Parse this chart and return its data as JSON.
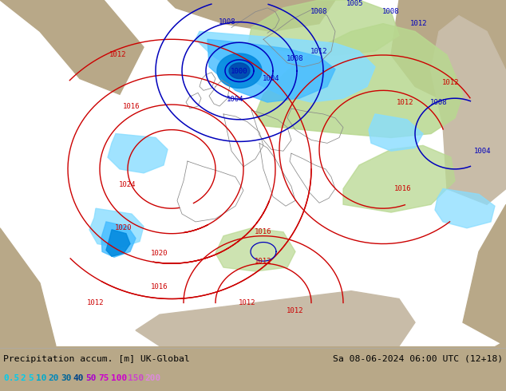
{
  "title_left": "Precipitation accum. [m] UK-Global",
  "title_right": "Sa 08-06-2024 06:00 UTC (12+18)",
  "legend_values": [
    "0.5",
    "2",
    "5",
    "10",
    "20",
    "30",
    "40",
    "50",
    "75",
    "100",
    "150",
    "200"
  ],
  "legend_colors_text": [
    "#00ccee",
    "#00ccee",
    "#00ccee",
    "#00aacc",
    "#0088bb",
    "#006699",
    "#004488",
    "#aa00cc",
    "#cc00cc",
    "#cc00cc",
    "#cc44cc",
    "#dd88dd"
  ],
  "bg_color": "#b8a888",
  "domain_color": "#ffffff",
  "land_color_outside": "#b8a888",
  "land_color_inside": "#d8cfc0",
  "sea_color": "#c8d8e8",
  "green_color": "#b8d890",
  "cyan_light": "#88ddff",
  "cyan_mid": "#44bbff",
  "cyan_dark": "#0088dd",
  "blue_deep": "#0044aa",
  "red_isobar": "#cc0000",
  "blue_isobar": "#0000bb",
  "coast_color": "#888888",
  "bottom_bg": "#e8e8e8",
  "figsize": [
    6.34,
    4.9
  ],
  "dpi": 100
}
